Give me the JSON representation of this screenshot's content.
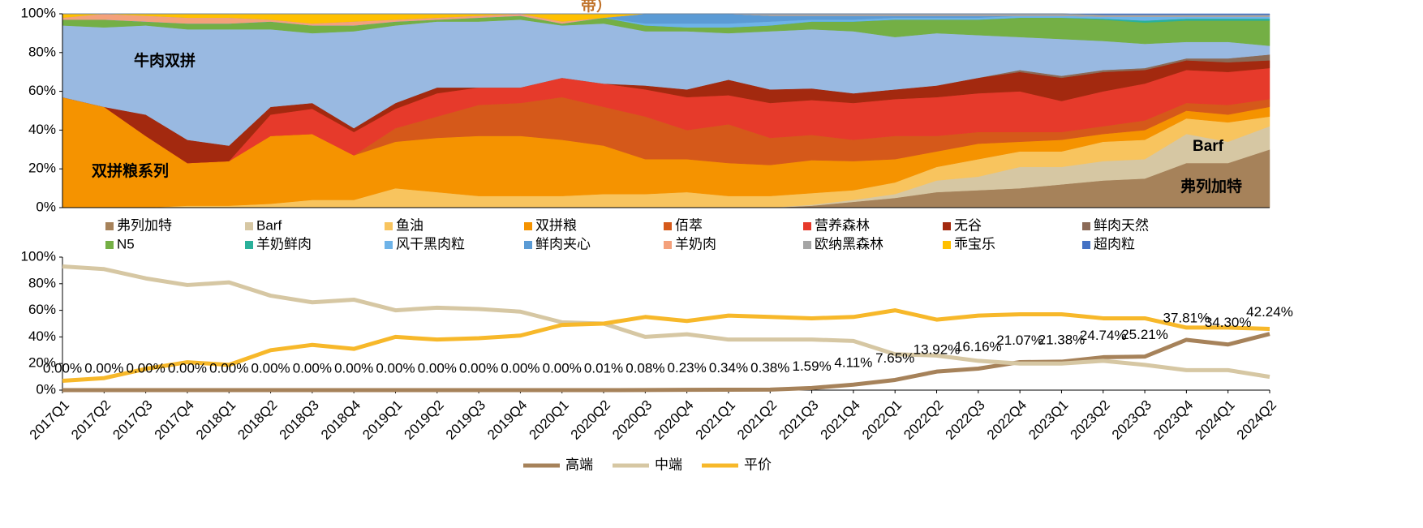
{
  "chart_data": [
    {
      "type": "stacked_area",
      "title": "带）",
      "annotations": [
        {
          "text": "牛肉双拼"
        },
        {
          "text": "双拼粮系列"
        },
        {
          "text": "Barf"
        },
        {
          "text": "弗列加特"
        }
      ],
      "ylim": [
        0,
        100
      ],
      "yticks": [
        {
          "value": 0,
          "label": "0%"
        },
        {
          "value": 20,
          "label": "20%"
        },
        {
          "value": 40,
          "label": "40%"
        },
        {
          "value": 60,
          "label": "60%"
        },
        {
          "value": 80,
          "label": "80%"
        },
        {
          "value": 100,
          "label": "100%"
        }
      ],
      "series": [
        {
          "name": "弗列加特",
          "color": "#a6825a",
          "values": [
            0,
            0,
            0,
            0,
            0,
            0,
            0,
            0,
            0,
            0,
            0,
            0,
            0,
            0,
            0,
            0,
            0,
            0,
            1,
            3,
            5,
            8,
            9,
            10,
            12,
            14,
            15,
            23,
            23,
            30
          ]
        },
        {
          "name": "Barf",
          "color": "#d6c7a3",
          "values": [
            0,
            0,
            0,
            0,
            0,
            0,
            0,
            0,
            0,
            0,
            0,
            0,
            0,
            0,
            0,
            0,
            0,
            0,
            0.5,
            1,
            2,
            6,
            7,
            11,
            9,
            10,
            10,
            15,
            11,
            12
          ]
        },
        {
          "name": "鱼油",
          "color": "#f8c45e",
          "values": [
            0,
            0,
            0,
            1,
            1,
            2,
            4,
            4,
            10,
            8,
            6,
            6,
            6,
            7,
            7,
            8,
            6,
            6,
            6,
            5,
            6,
            7,
            9,
            8,
            8,
            10,
            10,
            8,
            10,
            5
          ]
        },
        {
          "name": "双拼粮",
          "color": "#f59300",
          "values": [
            57,
            52,
            37,
            22,
            23,
            35,
            34,
            23,
            24,
            28,
            31,
            31,
            29,
            25,
            18,
            17,
            17,
            16,
            17,
            15,
            12,
            8,
            8,
            5,
            6,
            4,
            5,
            4,
            4,
            5
          ]
        },
        {
          "name": "佰萃",
          "color": "#d5591a",
          "values": [
            0,
            0,
            0,
            0,
            0,
            0,
            0,
            0,
            7,
            11,
            16,
            17,
            22,
            20,
            22,
            15,
            20,
            14,
            13,
            11,
            12,
            8,
            6,
            5,
            4,
            4,
            5,
            4,
            5,
            4
          ]
        },
        {
          "name": "营养森林",
          "color": "#e63a2b",
          "values": [
            0,
            0,
            0,
            0,
            0,
            11,
            13,
            12,
            10,
            12,
            9,
            8,
            10,
            12,
            14,
            17,
            15,
            18,
            18,
            19,
            19,
            20,
            20,
            21,
            16,
            18,
            19,
            17,
            17,
            16
          ]
        },
        {
          "name": "无谷",
          "color": "#a3290f",
          "values": [
            0,
            0,
            11,
            12,
            8,
            4,
            3,
            2,
            3,
            3,
            0,
            0,
            0,
            0,
            2,
            4,
            8,
            7,
            6,
            5,
            5,
            6,
            8,
            10,
            12,
            10,
            7,
            5,
            5,
            4
          ]
        },
        {
          "name": "鲜肉天然",
          "color": "#8b6a57",
          "values": [
            0,
            0,
            0,
            0,
            0,
            0,
            0,
            0,
            0,
            0,
            0,
            0,
            0,
            0,
            0,
            0,
            0,
            0,
            0,
            0,
            0,
            0,
            0,
            1,
            1,
            1,
            1,
            1,
            2,
            3
          ]
        },
        {
          "name": "牛肉双拼",
          "color": "#99b9e1",
          "in_legend": false,
          "values": [
            37,
            41,
            46,
            57,
            60,
            40,
            36,
            50,
            40,
            34,
            34,
            35,
            27,
            31,
            28,
            30,
            24,
            30,
            30.5,
            32,
            27,
            27,
            22,
            17,
            19,
            15,
            12.5,
            8.5,
            8.5,
            4.5
          ]
        },
        {
          "name": "N5",
          "color": "#74af45",
          "values": [
            3,
            4,
            2,
            3,
            3,
            4,
            4,
            3,
            2,
            1,
            2,
            2,
            1,
            3,
            3,
            2,
            3,
            3,
            4,
            5,
            9,
            7,
            8,
            10,
            11,
            11,
            11,
            11,
            11,
            13
          ]
        },
        {
          "name": "羊奶鲜肉",
          "color": "#2ab09a",
          "values": [
            0,
            0,
            0,
            0,
            0,
            0,
            0,
            0,
            0,
            0,
            0,
            0,
            0,
            0,
            0,
            0,
            0,
            0,
            0,
            0,
            0,
            0,
            0,
            0,
            0,
            0.5,
            1,
            1,
            1,
            1
          ]
        },
        {
          "name": "风干黑肉粒",
          "color": "#6eb3e8",
          "values": [
            0,
            0,
            0,
            0,
            0,
            0,
            0,
            0,
            0,
            0,
            0,
            0,
            0,
            0,
            1,
            2,
            2,
            2,
            1,
            1,
            1,
            1,
            1,
            1,
            1,
            1,
            2,
            1,
            1,
            1
          ]
        },
        {
          "name": "鲜肉夹心",
          "color": "#5b9bd5",
          "values": [
            0,
            0,
            0,
            0,
            0,
            0,
            0,
            0,
            0,
            0,
            0,
            0,
            0,
            0,
            5,
            5,
            5,
            3,
            2,
            2,
            1,
            1,
            1,
            0,
            0,
            0,
            0,
            0,
            0,
            0
          ]
        },
        {
          "name": "羊奶肉",
          "color": "#f4a17b",
          "values": [
            1,
            3,
            3,
            3,
            3,
            1,
            1,
            2,
            1,
            1,
            1,
            1,
            1,
            0,
            0,
            0,
            0,
            0,
            0,
            0,
            0,
            0,
            0,
            0,
            0,
            0,
            0,
            0,
            0,
            0
          ]
        },
        {
          "name": "欧纳黑森林",
          "color": "#a5a5a5",
          "values": [
            0,
            0,
            0,
            0,
            0,
            0,
            0,
            0,
            0,
            0,
            0,
            0,
            0,
            0,
            0,
            0,
            0,
            1,
            1,
            1,
            1,
            1,
            1,
            1,
            1,
            1,
            1,
            1,
            1,
            1
          ]
        },
        {
          "name": "乖宝乐",
          "color": "#ffc000",
          "values": [
            2,
            0,
            1,
            2,
            2,
            3,
            5,
            4,
            3,
            2,
            1,
            0,
            4,
            2,
            0,
            0,
            0,
            0,
            0,
            0,
            0,
            0,
            0,
            0,
            0,
            0,
            0,
            0,
            0,
            0
          ]
        },
        {
          "name": "超肉粒",
          "color": "#4472c4",
          "values": [
            0,
            0,
            0,
            0,
            0,
            0,
            0,
            0,
            0,
            0,
            0,
            0,
            0,
            0,
            0,
            0,
            0,
            0,
            0,
            0,
            0,
            0,
            0,
            0,
            0,
            0.5,
            0.5,
            0.5,
            0.5,
            0.5
          ]
        }
      ]
    },
    {
      "type": "line",
      "categories": [
        "2017Q1",
        "2017Q2",
        "2017Q3",
        "2017Q4",
        "2018Q1",
        "2018Q2",
        "2018Q3",
        "2018Q4",
        "2019Q1",
        "2019Q2",
        "2019Q3",
        "2019Q4",
        "2020Q1",
        "2020Q2",
        "2020Q3",
        "2020Q4",
        "2021Q1",
        "2021Q2",
        "2021Q3",
        "2021Q4",
        "2022Q1",
        "2022Q2",
        "2022Q3",
        "2022Q4",
        "2023Q1",
        "2023Q2",
        "2023Q3",
        "2023Q4",
        "2024Q1",
        "2024Q2"
      ],
      "ylim": [
        0,
        100
      ],
      "yticks": [
        {
          "value": 0,
          "label": "0%"
        },
        {
          "value": 20,
          "label": "20%"
        },
        {
          "value": 40,
          "label": "40%"
        },
        {
          "value": 60,
          "label": "60%"
        },
        {
          "value": 80,
          "label": "80%"
        },
        {
          "value": 100,
          "label": "100%"
        }
      ],
      "legend": "bottom",
      "series": [
        {
          "name": "高端",
          "color": "#a6825a",
          "values": [
            0,
            0,
            0,
            0,
            0,
            0,
            0,
            0,
            0,
            0,
            0,
            0,
            0,
            0.01,
            0.08,
            0.23,
            0.34,
            0.38,
            1.59,
            4.11,
            7.65,
            13.92,
            16.16,
            21.07,
            21.38,
            24.74,
            25.21,
            37.81,
            34.3,
            42.24
          ],
          "value_labels": [
            "0.00%",
            "0.00%",
            "0.00%",
            "0.00%",
            "0.00%",
            "0.00%",
            "0.00%",
            "0.00%",
            "0.00%",
            "0.00%",
            "0.00%",
            "0.00%",
            "0.00%",
            "0.01%",
            "0.08%",
            "0.23%",
            "0.34%",
            "0.38%",
            "1.59%",
            "4.11%",
            "7.65%",
            "13.92%",
            "16.16%",
            "21.07%",
            "21.38%",
            "24.74%",
            "25.21%",
            "37.81%",
            "34.30%",
            "42.24%"
          ]
        },
        {
          "name": "中端",
          "color": "#d6c7a3",
          "values": [
            93,
            91,
            84,
            79,
            81,
            71,
            66,
            68,
            60,
            62,
            61,
            59,
            51,
            50,
            40,
            42,
            38,
            38,
            38,
            37,
            27,
            26,
            22,
            20,
            20,
            22,
            19,
            15,
            15,
            10
          ]
        },
        {
          "name": "平价",
          "color": "#f7b82a",
          "values": [
            7,
            9,
            16,
            21,
            19,
            30,
            34,
            31,
            40,
            38,
            39,
            41,
            49,
            50,
            55,
            52,
            56,
            55,
            54,
            55,
            60,
            53,
            56,
            57,
            57,
            54,
            54,
            47,
            47,
            46
          ]
        }
      ]
    }
  ]
}
